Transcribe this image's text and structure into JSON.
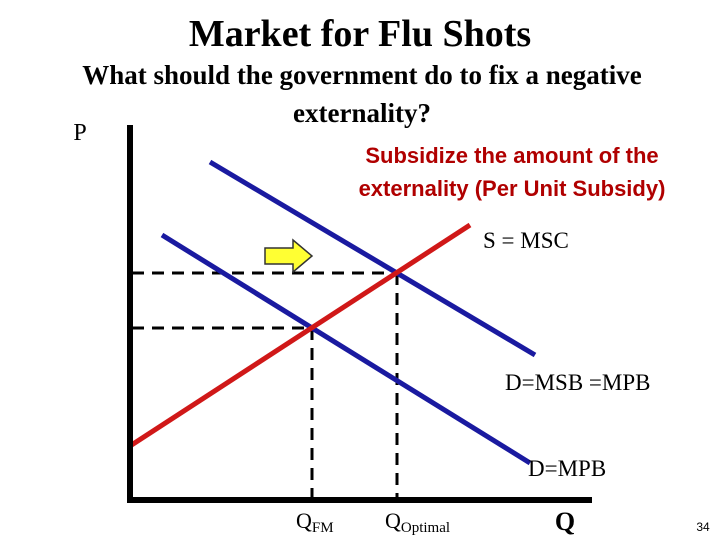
{
  "title": "Market for Flu Shots",
  "question": [
    "What should the government do to fix a negative",
    "externality?"
  ],
  "axis_labels": {
    "p": "P",
    "q": "Q"
  },
  "note": [
    "Subsidize the amount of the",
    "externality (Per Unit Subsidy)"
  ],
  "curves": {
    "supply": "S = MSC",
    "social_demand": "D=MSB =MPB",
    "private_demand": "D=MPB"
  },
  "quantities": {
    "free_market": {
      "base": "Q",
      "sub": "FM"
    },
    "optimal": {
      "base": "Q",
      "sub": "Optimal"
    }
  },
  "page_number": "34"
}
